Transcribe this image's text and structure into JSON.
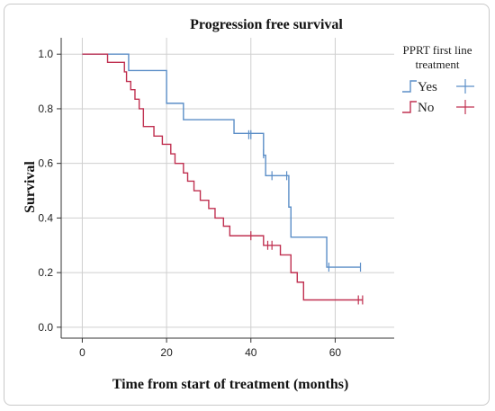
{
  "chart_data": {
    "type": "line",
    "title": "Progression free survival",
    "xlabel": "Time from start of treatment (months)",
    "ylabel": "Survival",
    "xlim": [
      -5,
      74
    ],
    "ylim": [
      -0.04,
      1.06
    ],
    "xticks": [
      0,
      20,
      40,
      60
    ],
    "yticks": [
      0.0,
      0.2,
      0.4,
      0.6,
      0.8,
      1.0
    ],
    "ytick_labels": [
      "0.0",
      "0.2",
      "0.4",
      "0.6",
      "0.8",
      "1.0"
    ],
    "grid": true,
    "legend_title_lines": [
      "PPRT first line",
      "treatment"
    ],
    "legend_position": "right",
    "series": [
      {
        "name": "Yes",
        "color": "#5b8ec7",
        "step_x": [
          0,
          11,
          19.5,
          20,
          24,
          36,
          40,
          43,
          43.5,
          48.5,
          49,
          49.5,
          58,
          66
        ],
        "step_y": [
          1.0,
          0.94,
          0.94,
          0.82,
          0.76,
          0.71,
          0.71,
          0.63,
          0.555,
          0.555,
          0.44,
          0.33,
          0.22,
          0.22
        ],
        "censored_x": [
          39.5,
          40,
          43,
          45,
          48.5,
          58.5,
          66
        ],
        "censored_y": [
          0.705,
          0.705,
          0.635,
          0.555,
          0.555,
          0.22,
          0.22
        ]
      },
      {
        "name": "No",
        "color": "#c03050",
        "step_x": [
          0,
          6,
          10,
          10.5,
          11.5,
          12.5,
          13.5,
          14.5,
          17,
          19,
          21,
          22,
          24,
          25,
          26.5,
          28,
          30,
          31.5,
          33.5,
          35,
          37,
          43,
          45.5,
          47,
          49.5,
          51,
          52.5,
          66.5
        ],
        "step_y": [
          1.0,
          0.97,
          0.935,
          0.9,
          0.87,
          0.835,
          0.8,
          0.735,
          0.7,
          0.67,
          0.635,
          0.6,
          0.565,
          0.535,
          0.5,
          0.465,
          0.435,
          0.4,
          0.37,
          0.335,
          0.335,
          0.3,
          0.3,
          0.265,
          0.2,
          0.165,
          0.1,
          0.1
        ],
        "censored_x": [
          40,
          44,
          45,
          65.5,
          66.5
        ],
        "censored_y": [
          0.335,
          0.3,
          0.3,
          0.1,
          0.1
        ]
      }
    ]
  }
}
